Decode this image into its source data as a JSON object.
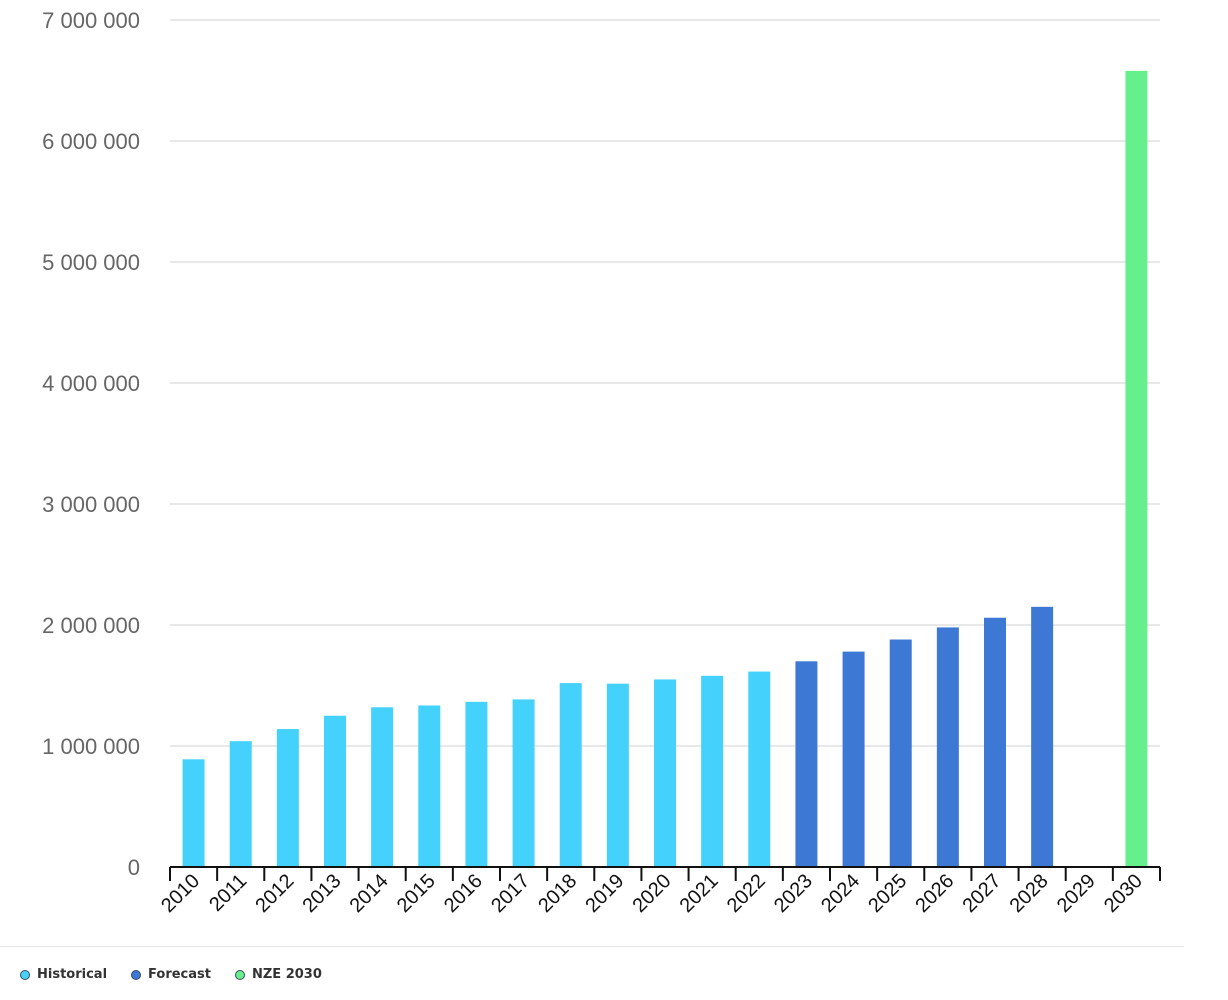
{
  "chart_data": {
    "type": "bar",
    "categories": [
      "2010",
      "2011",
      "2012",
      "2013",
      "2014",
      "2015",
      "2016",
      "2017",
      "2018",
      "2019",
      "2020",
      "2021",
      "2022",
      "2023",
      "2024",
      "2025",
      "2026",
      "2027",
      "2028",
      "2029",
      "2030"
    ],
    "series": [
      {
        "name": "Historical",
        "color": "#44d2fd",
        "values": [
          890000,
          1040000,
          1140000,
          1250000,
          1320000,
          1335000,
          1365000,
          1385000,
          1520000,
          1515000,
          1550000,
          1580000,
          1615000,
          null,
          null,
          null,
          null,
          null,
          null,
          null,
          null
        ]
      },
      {
        "name": "Forecast",
        "color": "#3d79d4",
        "values": [
          null,
          null,
          null,
          null,
          null,
          null,
          null,
          null,
          null,
          null,
          null,
          null,
          null,
          1700000,
          1780000,
          1880000,
          1980000,
          2060000,
          2150000,
          null,
          null
        ]
      },
      {
        "name": "NZE 2030",
        "color": "#66ef8d",
        "values": [
          null,
          null,
          null,
          null,
          null,
          null,
          null,
          null,
          null,
          null,
          null,
          null,
          null,
          null,
          null,
          null,
          null,
          null,
          null,
          null,
          6580000
        ]
      }
    ],
    "ylim": [
      0,
      7000000
    ],
    "yticks": [
      0,
      1000000,
      2000000,
      3000000,
      4000000,
      5000000,
      6000000,
      7000000
    ],
    "ytick_labels": [
      "0",
      "1 000 000",
      "2 000 000",
      "3 000 000",
      "4 000 000",
      "5 000 000",
      "6 000 000",
      "7 000 000"
    ],
    "grid": true,
    "legend_position": "bottom-left",
    "title": "",
    "xlabel": "",
    "ylabel": ""
  },
  "legend": {
    "items": [
      {
        "label": "Historical",
        "color": "#44d2fd"
      },
      {
        "label": "Forecast",
        "color": "#3d79d4"
      },
      {
        "label": "NZE 2030",
        "color": "#66ef8d"
      }
    ]
  }
}
